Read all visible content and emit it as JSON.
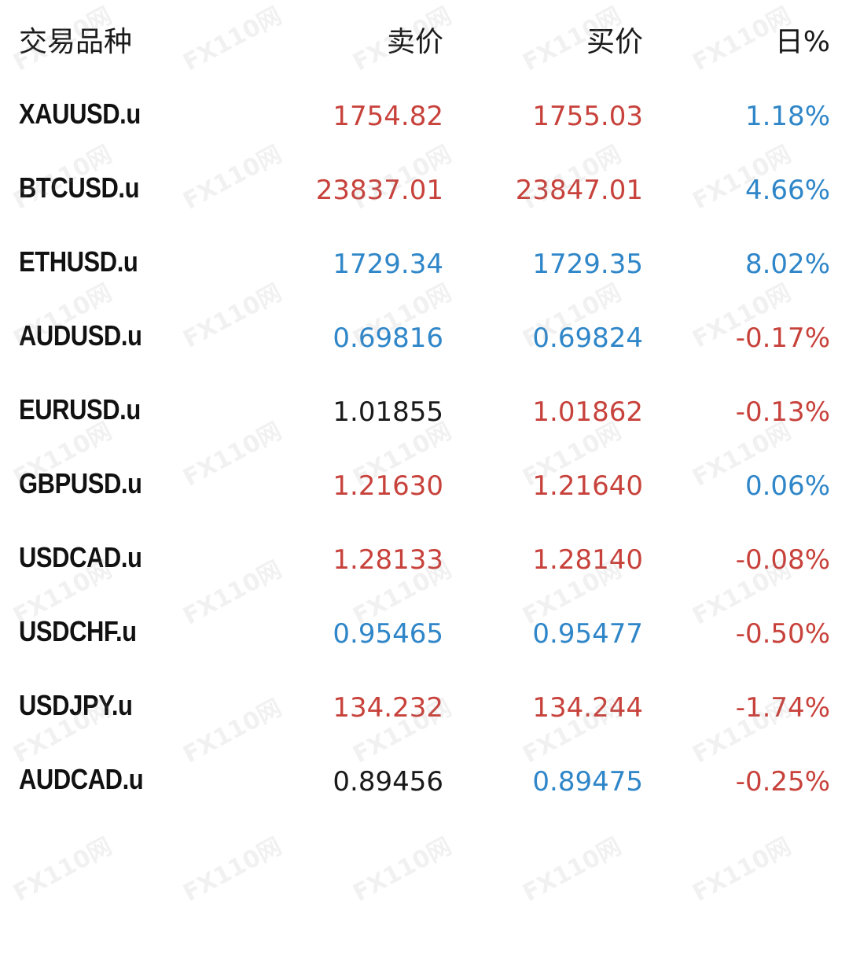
{
  "colors": {
    "up": "#2f86c8",
    "down": "#c8423c",
    "neutral": "#1a1a1a"
  },
  "header": {
    "symbol": "交易品种",
    "bid": "卖价",
    "ask": "买价",
    "change": "日%"
  },
  "rows": [
    {
      "symbol": "XAUUSD.u",
      "bid": "1754.82",
      "bid_color": "down",
      "ask": "1755.03",
      "ask_color": "down",
      "change": "1.18%",
      "change_color": "up"
    },
    {
      "symbol": "BTCUSD.u",
      "bid": "23837.01",
      "bid_color": "down",
      "ask": "23847.01",
      "ask_color": "down",
      "change": "4.66%",
      "change_color": "up"
    },
    {
      "symbol": "ETHUSD.u",
      "bid": "1729.34",
      "bid_color": "up",
      "ask": "1729.35",
      "ask_color": "up",
      "change": "8.02%",
      "change_color": "up"
    },
    {
      "symbol": "AUDUSD.u",
      "bid": "0.69816",
      "bid_color": "up",
      "ask": "0.69824",
      "ask_color": "up",
      "change": "-0.17%",
      "change_color": "down"
    },
    {
      "symbol": "EURUSD.u",
      "bid": "1.01855",
      "bid_color": "neutral",
      "ask": "1.01862",
      "ask_color": "down",
      "change": "-0.13%",
      "change_color": "down"
    },
    {
      "symbol": "GBPUSD.u",
      "bid": "1.21630",
      "bid_color": "down",
      "ask": "1.21640",
      "ask_color": "down",
      "change": "0.06%",
      "change_color": "up"
    },
    {
      "symbol": "USDCAD.u",
      "bid": "1.28133",
      "bid_color": "down",
      "ask": "1.28140",
      "ask_color": "down",
      "change": "-0.08%",
      "change_color": "down"
    },
    {
      "symbol": "USDCHF.u",
      "bid": "0.95465",
      "bid_color": "up",
      "ask": "0.95477",
      "ask_color": "up",
      "change": "-0.50%",
      "change_color": "down"
    },
    {
      "symbol": "USDJPY.u",
      "bid": "134.232",
      "bid_color": "down",
      "ask": "134.244",
      "ask_color": "down",
      "change": "-1.74%",
      "change_color": "down"
    },
    {
      "symbol": "AUDCAD.u",
      "bid": "0.89456",
      "bid_color": "neutral",
      "ask": "0.89475",
      "ask_color": "up",
      "change": "-0.25%",
      "change_color": "down"
    }
  ],
  "watermark": "FX110网"
}
